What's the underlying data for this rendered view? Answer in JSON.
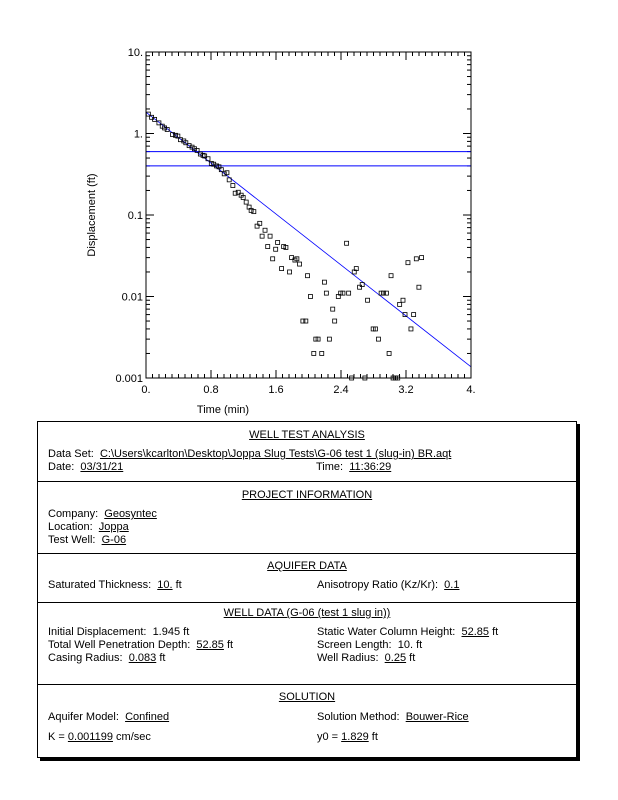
{
  "chart_data": {
    "type": "scatter",
    "xlabel": "Time (min)",
    "ylabel": "Displacement (ft)",
    "xlim": [
      0,
      4
    ],
    "ylim": [
      0.001,
      10
    ],
    "yscale": "log",
    "xticks": [
      "0.",
      "0.8",
      "1.6",
      "2.4",
      "3.2",
      "4."
    ],
    "xtick_values": [
      0,
      0.8,
      1.6,
      2.4,
      3.2,
      4
    ],
    "yticks": [
      "0.001",
      "0.01",
      "0.1",
      "1.",
      "10."
    ],
    "ytick_values": [
      0.001,
      0.01,
      0.1,
      1,
      10
    ],
    "grid": false,
    "colors": {
      "points": "#000000",
      "lines": "#0000ff"
    },
    "points": [
      [
        0.029,
        1.73
      ],
      [
        0.069,
        1.58
      ],
      [
        0.106,
        1.49
      ],
      [
        0.159,
        1.35
      ],
      [
        0.2,
        1.23
      ],
      [
        0.229,
        1.17
      ],
      [
        0.261,
        1.12
      ],
      [
        0.327,
        0.97
      ],
      [
        0.363,
        0.95
      ],
      [
        0.392,
        0.93
      ],
      [
        0.424,
        0.84
      ],
      [
        0.465,
        0.81
      ],
      [
        0.49,
        0.77
      ],
      [
        0.531,
        0.71
      ],
      [
        0.567,
        0.68
      ],
      [
        0.596,
        0.65
      ],
      [
        0.629,
        0.62
      ],
      [
        0.669,
        0.56
      ],
      [
        0.702,
        0.54
      ],
      [
        0.722,
        0.53
      ],
      [
        0.763,
        0.49
      ],
      [
        0.804,
        0.43
      ],
      [
        0.833,
        0.42
      ],
      [
        0.869,
        0.4
      ],
      [
        0.898,
        0.39
      ],
      [
        0.927,
        0.36
      ],
      [
        0.963,
        0.32
      ],
      [
        0.996,
        0.33
      ],
      [
        1.024,
        0.27
      ],
      [
        1.069,
        0.23
      ],
      [
        1.098,
        0.185
      ],
      [
        1.135,
        0.19
      ],
      [
        1.171,
        0.175
      ],
      [
        1.196,
        0.164
      ],
      [
        1.233,
        0.144
      ],
      [
        1.269,
        0.125
      ],
      [
        1.294,
        0.114
      ],
      [
        1.327,
        0.11
      ],
      [
        1.367,
        0.073
      ],
      [
        1.4,
        0.079
      ],
      [
        1.429,
        0.055
      ],
      [
        1.465,
        0.065
      ],
      [
        1.498,
        0.041
      ],
      [
        1.527,
        0.055
      ],
      [
        1.559,
        0.029
      ],
      [
        1.596,
        0.038
      ],
      [
        1.62,
        0.046
      ],
      [
        1.669,
        0.022
      ],
      [
        1.694,
        0.041
      ],
      [
        1.722,
        0.04
      ],
      [
        1.767,
        0.02
      ],
      [
        1.792,
        0.03
      ],
      [
        1.833,
        0.028
      ],
      [
        1.857,
        0.029
      ],
      [
        1.89,
        0.025
      ],
      [
        1.931,
        0.005
      ],
      [
        1.967,
        0.005
      ],
      [
        1.988,
        0.018
      ],
      [
        2.024,
        0.01
      ],
      [
        2.065,
        0.002
      ],
      [
        2.09,
        0.003
      ],
      [
        2.118,
        0.003
      ],
      [
        2.163,
        0.002
      ],
      [
        2.196,
        0.015
      ],
      [
        2.22,
        0.011
      ],
      [
        2.257,
        0.003
      ],
      [
        2.298,
        0.007
      ],
      [
        2.322,
        0.005
      ],
      [
        2.367,
        0.01
      ],
      [
        2.396,
        0.011
      ],
      [
        2.424,
        0.011
      ],
      [
        2.469,
        0.045
      ],
      [
        2.494,
        0.011
      ],
      [
        2.531,
        0.001
      ],
      [
        2.563,
        0.02
      ],
      [
        2.588,
        0.022
      ],
      [
        2.629,
        0.013
      ],
      [
        2.661,
        0.014
      ],
      [
        2.694,
        0.001
      ],
      [
        2.727,
        0.009
      ],
      [
        2.796,
        0.004
      ],
      [
        2.824,
        0.004
      ],
      [
        2.861,
        0.003
      ],
      [
        2.894,
        0.011
      ],
      [
        2.922,
        0.011
      ],
      [
        2.959,
        0.011
      ],
      [
        2.992,
        0.002
      ],
      [
        3.016,
        0.018
      ],
      [
        3.041,
        0.001
      ],
      [
        3.069,
        0.001
      ],
      [
        3.098,
        0.001
      ],
      [
        3.122,
        0.008
      ],
      [
        3.163,
        0.009
      ],
      [
        3.188,
        0.006
      ],
      [
        3.224,
        0.026
      ],
      [
        3.261,
        0.004
      ],
      [
        3.294,
        0.006
      ],
      [
        3.327,
        0.029
      ],
      [
        3.359,
        0.013
      ],
      [
        3.392,
        0.03
      ]
    ],
    "fit_line": [
      [
        0,
        1.829
      ],
      [
        4,
        0.00137
      ]
    ],
    "horizontal_lines": [
      0.6,
      0.4
    ]
  },
  "report": {
    "wta": {
      "title": "WELL TEST ANALYSIS",
      "dataset_label": "Data Set:",
      "dataset_value": "C:\\Users\\kcarlton\\Desktop\\Joppa Slug Tests\\G-06 test 1 (slug-in) BR.aqt",
      "date_label": "Date:",
      "date_value": "03/31/21",
      "time_label": "Time:",
      "time_value": "11:36:29"
    },
    "project": {
      "title": "PROJECT INFORMATION",
      "company_label": "Company:",
      "company_value": "Geosyntec",
      "location_label": "Location:",
      "location_value": "Joppa",
      "well_label": "Test Well:",
      "well_value": "G-06"
    },
    "aquifer": {
      "title": "AQUIFER DATA",
      "thickness_label": "Saturated Thickness:",
      "thickness_value": "10.",
      "thickness_unit": "ft",
      "anis_label": "Anisotropy Ratio (Kz/Kr):",
      "anis_value": "0.1"
    },
    "well": {
      "title": "WELL DATA (G-06 (test 1 slug in))",
      "init_label": "Initial Displacement:",
      "init_value": "1.945 ft",
      "depth_label": "Total Well Penetration Depth:",
      "depth_value": "52.85",
      "depth_unit": "ft",
      "casing_label": "Casing Radius:",
      "casing_value": "0.083",
      "casing_unit": "ft",
      "swc_label": "Static Water Column Height:",
      "swc_value": "52.85",
      "swc_unit": "ft",
      "screen_label": "Screen Length:",
      "screen_value": "10. ft",
      "radius_label": "Well Radius:",
      "radius_value": "0.25",
      "radius_unit": "ft"
    },
    "solution": {
      "title": "SOLUTION",
      "model_label": "Aquifer Model:",
      "model_value": "Confined",
      "method_label": "Solution Method:",
      "method_value": "Bouwer-Rice",
      "k_label": "K  =",
      "k_value": "0.001199",
      "k_unit": "cm/sec",
      "y0_label": "y0 =",
      "y0_value": "1.829",
      "y0_unit": "ft"
    }
  }
}
